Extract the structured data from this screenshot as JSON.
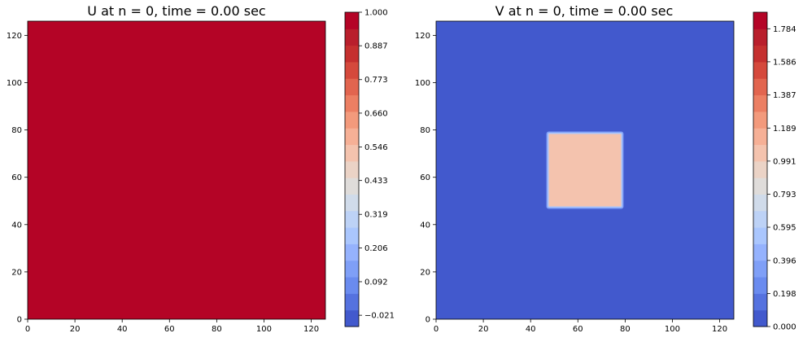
{
  "chart_data": [
    {
      "type": "heatmap",
      "title": "U at n = 0, time = 0.00 sec",
      "xlim": [
        0,
        126
      ],
      "ylim": [
        0,
        126
      ],
      "xticks": [
        0,
        20,
        40,
        60,
        80,
        100,
        120
      ],
      "yticks": [
        0,
        20,
        40,
        60,
        80,
        100,
        120
      ],
      "field": "uniform",
      "value": 1.0,
      "colorbar": {
        "cmap": "coolwarm",
        "levels": 19,
        "range": [
          -0.059,
          1.0
        ],
        "tick_values": [
          -0.021,
          0.092,
          0.206,
          0.319,
          0.433,
          0.546,
          0.66,
          0.773,
          0.887,
          1.0
        ],
        "tick_labels": [
          "−0.021",
          "0.092",
          "0.206",
          "0.319",
          "0.433",
          "0.546",
          "0.660",
          "0.773",
          "0.887",
          "1.000"
        ]
      }
    },
    {
      "type": "heatmap",
      "title": "V at n = 0, time = 0.00 sec",
      "xlim": [
        0,
        126
      ],
      "ylim": [
        0,
        126
      ],
      "xticks": [
        0,
        20,
        40,
        60,
        80,
        100,
        120
      ],
      "yticks": [
        0,
        20,
        40,
        60,
        80,
        100,
        120
      ],
      "field": "background_with_square",
      "background_value": 0.0,
      "square": {
        "x_range": [
          47,
          79
        ],
        "y_range": [
          47,
          79
        ],
        "value": 1.0
      },
      "colorbar": {
        "cmap": "coolwarm",
        "levels": 19,
        "range": [
          0.0,
          1.883
        ],
        "tick_values": [
          0.0,
          0.198,
          0.396,
          0.595,
          0.793,
          0.991,
          1.189,
          1.387,
          1.586,
          1.784
        ],
        "tick_labels": [
          "0.000",
          "0.198",
          "0.396",
          "0.595",
          "0.793",
          "0.991",
          "1.189",
          "1.387",
          "1.586",
          "1.784"
        ]
      }
    }
  ],
  "colors": {
    "coolwarm_bands": [
      "#4259cd",
      "#5572df",
      "#6a8bef",
      "#7f9ff7",
      "#95b2fd",
      "#aac6fd",
      "#bdd2f6",
      "#d0dbea",
      "#dfdcda",
      "#ebd3c6",
      "#f4c3ae",
      "#f6b096",
      "#f39a7c",
      "#ec7f63",
      "#e2654f",
      "#d5493c",
      "#c5302f",
      "#b91f2c",
      "#b40426"
    ]
  }
}
